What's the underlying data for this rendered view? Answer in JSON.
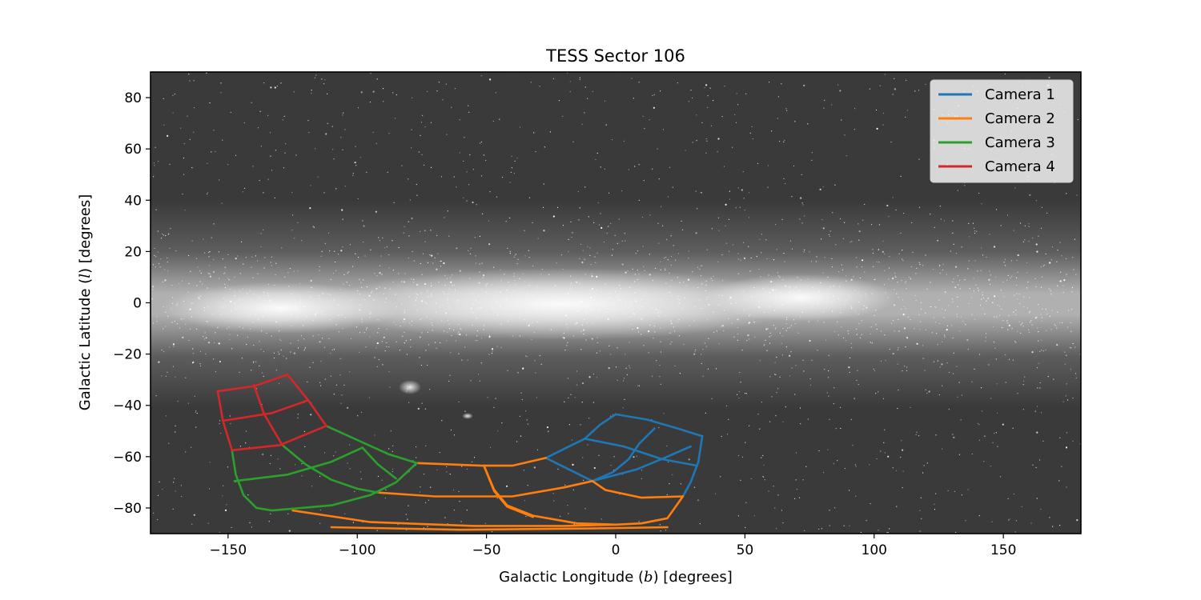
{
  "chart_data": {
    "type": "line",
    "title": "TESS Sector 106",
    "xlabel": "Galactic Longitude (b) [degrees]",
    "xlabel_parts": {
      "before": "Galactic Longitude (",
      "symbol": "b",
      "after": ") [degrees]"
    },
    "ylabel": "Galactic Latitude (l) [degrees]",
    "ylabel_parts": {
      "before": "Galactic Latitude (",
      "symbol": "l",
      "after": ") [degrees]"
    },
    "xlim": [
      -180,
      180
    ],
    "ylim": [
      -90,
      90
    ],
    "xticks": [
      -150,
      -100,
      -50,
      0,
      50,
      100,
      150
    ],
    "xtick_labels": [
      "−150",
      "−100",
      "−50",
      "0",
      "50",
      "100",
      "150"
    ],
    "yticks": [
      80,
      60,
      40,
      20,
      0,
      -20,
      -40,
      -60,
      -80
    ],
    "ytick_labels": [
      "80",
      "60",
      "40",
      "20",
      "0",
      "−20",
      "−40",
      "−60",
      "−80"
    ],
    "grid": false,
    "background": "all-sky Milky Way image in galactic coordinates (grayscale)",
    "legend_position": "top-right",
    "series": [
      {
        "name": "Camera 1",
        "color": "#1f77b4",
        "lines": [
          [
            [
              0,
              -43.5
            ],
            [
              12,
              -45.5
            ],
            [
              24,
              -49
            ],
            [
              33.5,
              -52
            ]
          ],
          [
            [
              -12,
              -53
            ],
            [
              3,
              -56
            ],
            [
              18,
              -61
            ],
            [
              31.5,
              -63.5
            ]
          ],
          [
            [
              -27,
              -60.5
            ],
            [
              -18,
              -65
            ],
            [
              -9,
              -69.5
            ]
          ],
          [
            [
              -9,
              -69.5
            ],
            [
              8,
              -65
            ],
            [
              20,
              -60
            ],
            [
              29,
              -56
            ]
          ],
          [
            [
              0,
              -43.5
            ],
            [
              -6,
              -47.5
            ],
            [
              -12,
              -53
            ],
            [
              -20,
              -57
            ],
            [
              -27,
              -60.5
            ]
          ],
          [
            [
              15,
              -49
            ],
            [
              9,
              -55
            ],
            [
              5,
              -61
            ],
            [
              -1,
              -66
            ],
            [
              -9,
              -69.5
            ]
          ],
          [
            [
              33.5,
              -52
            ],
            [
              32,
              -62
            ],
            [
              29,
              -70
            ],
            [
              26,
              -75.5
            ]
          ]
        ]
      },
      {
        "name": "Camera 2",
        "color": "#ff7f0e",
        "lines": [
          [
            [
              -77,
              -62.5
            ],
            [
              -52,
              -63.5
            ],
            [
              -40,
              -63.5
            ],
            [
              -27,
              -60.5
            ]
          ],
          [
            [
              -92,
              -74
            ],
            [
              -70,
              -75.5
            ],
            [
              -40,
              -75.5
            ],
            [
              -20,
              -72
            ],
            [
              -9,
              -69.5
            ]
          ],
          [
            [
              -125,
              -81
            ],
            [
              -95,
              -85.5
            ],
            [
              -55,
              -87
            ],
            [
              -20,
              -87
            ],
            [
              0,
              -86.5
            ],
            [
              10,
              -86
            ],
            [
              20,
              -84
            ],
            [
              26,
              -75.5
            ]
          ],
          [
            [
              -51,
              -63.5
            ],
            [
              -47,
              -73
            ],
            [
              -42,
              -79
            ],
            [
              -32,
              -83
            ],
            [
              -15,
              -86
            ],
            [
              0,
              -86.5
            ]
          ],
          [
            [
              -51,
              -63.5
            ],
            [
              -47,
              -73.5
            ],
            [
              -42,
              -79.5
            ],
            [
              -32,
              -83.5
            ]
          ],
          [
            [
              -9,
              -69.5
            ],
            [
              -4,
              -73
            ],
            [
              10,
              -76
            ],
            [
              26,
              -75.5
            ]
          ],
          [
            [
              -110,
              -87.5
            ],
            [
              -60,
              -88.5
            ],
            [
              -10,
              -88
            ],
            [
              20,
              -87.5
            ]
          ]
        ]
      },
      {
        "name": "Camera 3",
        "color": "#2ca02c",
        "lines": [
          [
            [
              -148.5,
              -57.5
            ],
            [
              -147,
              -67
            ],
            [
              -144,
              -75
            ],
            [
              -139,
              -80
            ],
            [
              -133,
              -81
            ]
          ],
          [
            [
              -147.5,
              -69.5
            ],
            [
              -127,
              -67
            ],
            [
              -110,
              -62
            ],
            [
              -98,
              -56.5
            ]
          ],
          [
            [
              -133,
              -81
            ],
            [
              -110,
              -79
            ],
            [
              -95,
              -75
            ],
            [
              -85,
              -70
            ],
            [
              -77,
              -62.5
            ]
          ],
          [
            [
              -112,
              -48
            ],
            [
              -100,
              -53.5
            ],
            [
              -88,
              -59
            ],
            [
              -77,
              -62.5
            ]
          ],
          [
            [
              -129,
              -55.5
            ],
            [
              -120,
              -63
            ],
            [
              -110,
              -69
            ],
            [
              -100,
              -72.5
            ],
            [
              -92,
              -74
            ]
          ],
          [
            [
              -98,
              -56.5
            ],
            [
              -92,
              -63
            ],
            [
              -85,
              -68.5
            ]
          ]
        ]
      },
      {
        "name": "Camera 4",
        "color": "#d62728",
        "lines": [
          [
            [
              -154,
              -34.5
            ],
            [
              -140,
              -32.5
            ],
            [
              -127,
              -28
            ]
          ],
          [
            [
              -152,
              -46
            ],
            [
              -133,
              -43
            ],
            [
              -119,
              -38
            ]
          ],
          [
            [
              -148.5,
              -57.5
            ],
            [
              -130,
              -55.5
            ],
            [
              -112,
              -48
            ]
          ],
          [
            [
              -154,
              -34.5
            ],
            [
              -152,
              -46
            ],
            [
              -148.5,
              -57.5
            ]
          ],
          [
            [
              -140,
              -32
            ],
            [
              -136,
              -43.5
            ],
            [
              -129,
              -55.5
            ]
          ],
          [
            [
              -127,
              -28
            ],
            [
              -119,
              -38
            ],
            [
              -112,
              -48
            ]
          ]
        ]
      }
    ]
  }
}
